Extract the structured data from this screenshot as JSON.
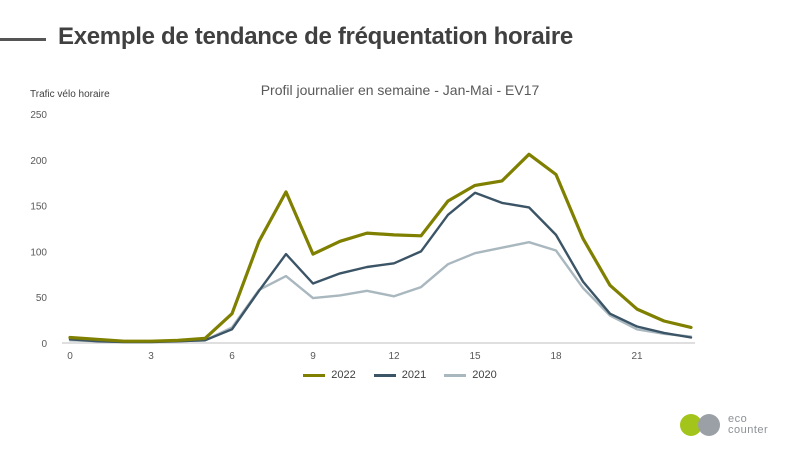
{
  "page": {
    "title": "Exemple de tendance de fréquentation horaire"
  },
  "logo": {
    "line1": "eco",
    "line2": "counter",
    "colors": [
      "#a3c41a",
      "#9aa0a6"
    ]
  },
  "chart_data": {
    "type": "line",
    "title": "Profil journalier en semaine - Jan-Mai - EV17",
    "ylabel": "Trafic vélo horaire",
    "xlabel": "",
    "x": [
      0,
      1,
      2,
      3,
      4,
      5,
      6,
      7,
      8,
      9,
      10,
      11,
      12,
      13,
      14,
      15,
      16,
      17,
      18,
      19,
      20,
      21,
      22,
      23
    ],
    "xticks": [
      0,
      3,
      6,
      9,
      12,
      15,
      18,
      21
    ],
    "yticks": [
      0,
      50,
      100,
      150,
      200,
      250
    ],
    "ylim": [
      0,
      250
    ],
    "xlim": [
      0,
      23
    ],
    "grid": false,
    "legend": "bottom",
    "series": [
      {
        "name": "2022",
        "color": "#7f7f00",
        "values": [
          6,
          4,
          2,
          2,
          3,
          5,
          32,
          111,
          165,
          97,
          111,
          120,
          118,
          117,
          155,
          172,
          177,
          206,
          184,
          114,
          63,
          37,
          24,
          17
        ]
      },
      {
        "name": "2021",
        "color": "#3b5466",
        "values": [
          4,
          2,
          1,
          1,
          2,
          3,
          15,
          57,
          97,
          65,
          76,
          83,
          87,
          100,
          140,
          164,
          153,
          148,
          118,
          67,
          32,
          18,
          11,
          6
        ]
      },
      {
        "name": "2020",
        "color": "#a9b7bf",
        "values": [
          3,
          2,
          1,
          1,
          2,
          3,
          17,
          58,
          73,
          49,
          52,
          57,
          51,
          61,
          86,
          98,
          104,
          110,
          101,
          60,
          30,
          15,
          10,
          7
        ]
      }
    ]
  }
}
